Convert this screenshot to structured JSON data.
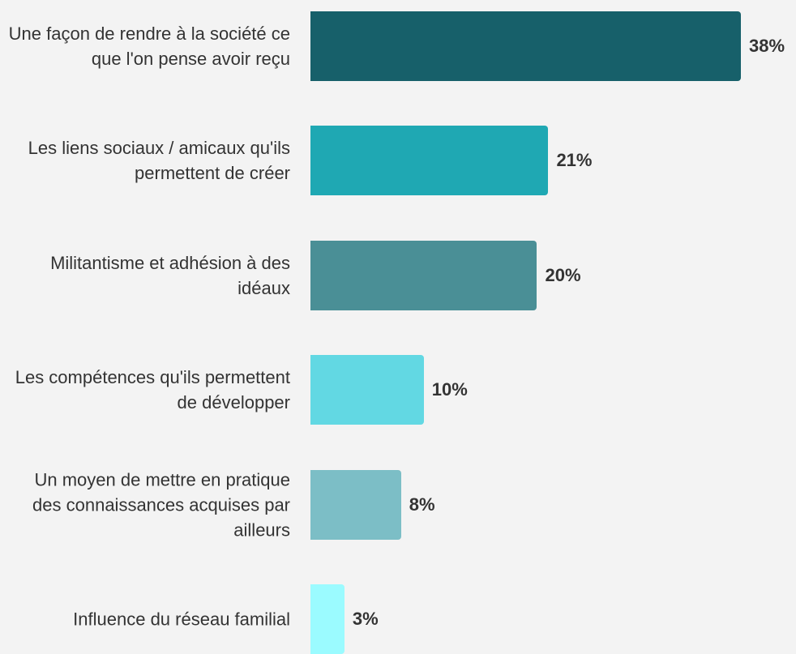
{
  "chart_data": {
    "type": "bar",
    "orientation": "horizontal",
    "categories": [
      "Une façon de rendre à la société ce que l'on pense avoir reçu",
      "Les liens sociaux / amicaux qu'ils permettent de créer",
      "Militantisme et adhésion à des idéaux",
      "Les compétences qu'ils permettent de développer",
      "Un moyen de mettre en pratique des connaissances acquises par ailleurs",
      "Influence du réseau familial"
    ],
    "values": [
      38,
      21,
      20,
      10,
      8,
      3
    ],
    "value_labels": [
      "38%",
      "21%",
      "20%",
      "10%",
      "8%",
      "3%"
    ],
    "colors": [
      "#17606a",
      "#1fa8b3",
      "#4a8f96",
      "#62d8e3",
      "#7cbec6",
      "#9bfbff"
    ]
  }
}
